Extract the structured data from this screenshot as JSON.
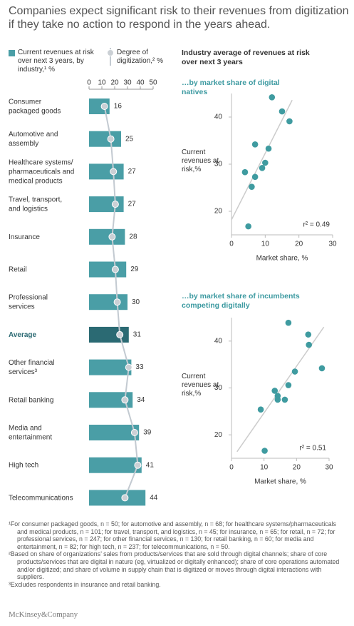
{
  "title": "Companies expect significant risk to their revenues from digitization if they take no action to respond in the years ahead.",
  "heading": "Industry average of revenues at risk over next 3 years",
  "chart_data": [
    {
      "type": "bar",
      "orientation": "horizontal",
      "categories": [
        [
          "Consumer",
          "packaged goods"
        ],
        [
          "Automotive and",
          "assembly"
        ],
        [
          "Healthcare systems/",
          "pharmaceuticals and",
          "medical products"
        ],
        [
          "Travel, transport,",
          "and logistics"
        ],
        [
          "Insurance"
        ],
        [
          "Retail"
        ],
        [
          "Professional",
          "services"
        ],
        [
          "Average"
        ],
        [
          "Other financial",
          "services³"
        ],
        [
          "Retail banking"
        ],
        [
          "Media and",
          "entertainment"
        ],
        [
          "High tech"
        ],
        [
          "Telecommunications"
        ]
      ],
      "series": [
        {
          "name": "Current revenues at risk over next 3 years, by industry,¹ %",
          "type": "bar",
          "color": "#4a9ea6",
          "values": [
            16,
            25,
            27,
            27,
            28,
            29,
            30,
            31,
            33,
            34,
            39,
            41,
            44
          ]
        },
        {
          "name": "Degree of digitization,² %",
          "type": "line",
          "color": "#c3cad1",
          "values": [
            12,
            17,
            19,
            20.5,
            18,
            20.5,
            22,
            24,
            31,
            28,
            35.5,
            38,
            28
          ]
        }
      ],
      "highlight_index": 7,
      "highlight_color": "#2b6a73",
      "xlim": [
        0,
        50
      ],
      "xticks": [
        0,
        10,
        20,
        30,
        40,
        50
      ]
    },
    {
      "type": "scatter",
      "subtitle": "…by market share of digital natives",
      "x_label": "Market share, %",
      "y_label": "Current revenues at risk,%",
      "color": "#3f9ba0",
      "x": [
        12,
        15,
        17.2,
        7,
        11,
        10,
        9.1,
        7,
        4,
        6,
        5
      ],
      "values": [
        44.2,
        41.2,
        39.1,
        34.2,
        33.3,
        30.3,
        29.2,
        27.3,
        28.3,
        25.2,
        16.8
      ],
      "trend_x": [
        0,
        18
      ],
      "trend_y": [
        18.2,
        43.6
      ],
      "annotation": "r² = 0.49",
      "xlim": [
        0,
        30
      ],
      "xticks": [
        0,
        10,
        20,
        30
      ],
      "ylim": [
        15,
        45
      ],
      "yticks": [
        20,
        30,
        40
      ]
    },
    {
      "type": "scatter",
      "subtitle": "…by market share of incumbents competing digitally",
      "x_label": "Market share, %",
      "y_label": "Current revenues at risk,%",
      "color": "#3f9ba0",
      "x": [
        17.5,
        23.6,
        23.8,
        27.8,
        19.5,
        17.5,
        13.3,
        14.2,
        14.2,
        16.4,
        9,
        10.2
      ],
      "values": [
        43.9,
        41.4,
        39.2,
        34.2,
        33.5,
        30.6,
        29.4,
        28.3,
        27.5,
        27.5,
        25.4,
        16.6
      ],
      "trend_x": [
        1.7,
        28.4
      ],
      "trend_y": [
        16.4,
        43
      ],
      "annotation": "r² = 0.51",
      "xlim": [
        0,
        30
      ],
      "xticks": [
        0,
        10,
        20,
        30
      ],
      "ylim": [
        15,
        45
      ],
      "yticks": [
        20,
        30,
        40
      ]
    }
  ],
  "footnotes": [
    "¹For consumer packaged goods, n = 50; for automotive and assembly, n = 68; for healthcare systems/pharmaceuticals and medical products, n = 101; for travel, transport, and logistics, n = 45; for insurance, n = 65; for retail, n = 72; for professional services, n = 247; for other financial services, n = 130; for retail banking, n = 60; for media and entertainment, n = 82; for high tech, n = 237; for telecommunications, n = 50.",
    "²Based on share of organizations’ sales from products/services that are sold through digital channels; share of core products/services that are digital in nature (eg, virtualized or digitally enhanced); share of core operations automated and/or digitized; and share of volume in supply chain that is digitized or moves through digital interactions with suppliers.",
    "³Excludes respondents in insurance and retail banking."
  ],
  "source": "McKinsey&Company"
}
